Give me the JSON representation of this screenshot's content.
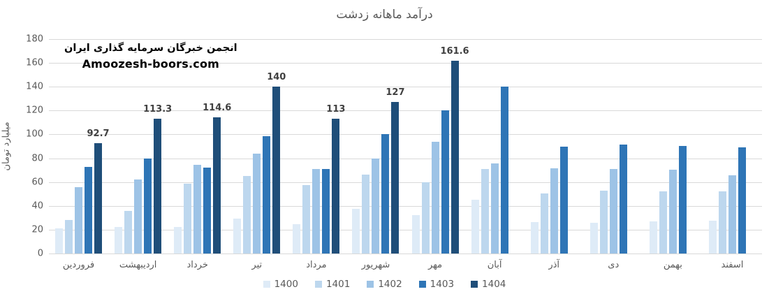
{
  "chart_data": {
    "type": "bar",
    "title": "درآمد ماهانه زدشت",
    "ylabel": "میلیارد تومان",
    "xlabel": "",
    "ylim": [
      0,
      180
    ],
    "ytick_step": 20,
    "grid": true,
    "legend_position": "bottom",
    "categories": [
      "فروردین",
      "اردیبهشت",
      "خرداد",
      "تیر",
      "مرداد",
      "شهریور",
      "مهر",
      "آبان",
      "آذر",
      "دی",
      "بهمن",
      "اسفند"
    ],
    "series": [
      {
        "name": "1400",
        "color": "#deebf7",
        "values": [
          21,
          22,
          22,
          29.5,
          24.5,
          37.5,
          32,
          45,
          26.5,
          26,
          27,
          27.5
        ]
      },
      {
        "name": "1401",
        "color": "#bdd7ee",
        "values": [
          28,
          35.5,
          58.5,
          65,
          57.5,
          66,
          60,
          71,
          50.5,
          52.5,
          52,
          52
        ]
      },
      {
        "name": "1402",
        "color": "#9dc3e6",
        "values": [
          55.5,
          62,
          74.5,
          84,
          71,
          79.5,
          94,
          75.5,
          71.5,
          71,
          70.5,
          65.5
        ]
      },
      {
        "name": "1403",
        "color": "#2e75b6",
        "values": [
          73,
          80,
          72,
          98.5,
          71,
          100,
          120,
          140,
          90,
          91.5,
          90.5,
          89
        ]
      },
      {
        "name": "1404",
        "color": "#1f4e79",
        "values": [
          92.7,
          113.3,
          114.6,
          140,
          113,
          127,
          161.6,
          null,
          null,
          null,
          null,
          null
        ],
        "data_labels": [
          "92.7",
          "113.3",
          "114.6",
          "140",
          "113",
          "127",
          "161.6",
          null,
          null,
          null,
          null,
          null
        ]
      }
    ]
  },
  "watermark": {
    "line1": "انجمن خبرگان سرمایه گذاری ایران",
    "line2": "Amoozesh-boors.com"
  },
  "colors": {
    "title_text": "#595959",
    "axis_text": "#595959",
    "gridline": "#d9d9d9",
    "data_label_text": "#404040",
    "watermark_text": "#000000",
    "background": "#ffffff"
  }
}
